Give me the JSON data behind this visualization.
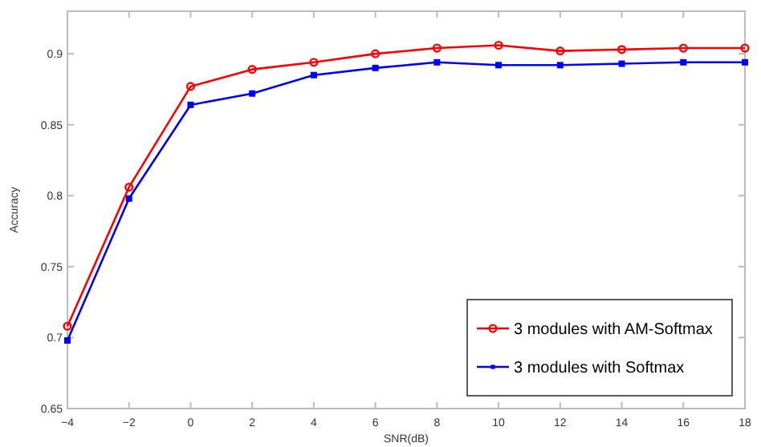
{
  "chart_data": {
    "type": "line",
    "xlabel": "SNR(dB)",
    "ylabel": "Accuracy",
    "x": [
      -4,
      -2,
      0,
      2,
      4,
      6,
      8,
      10,
      12,
      14,
      16,
      18
    ],
    "series": [
      {
        "name": "3 modules with AM-Softmax",
        "color": "#ff0000",
        "marker": "circle",
        "values": [
          0.708,
          0.806,
          0.877,
          0.889,
          0.894,
          0.9,
          0.904,
          0.906,
          0.902,
          0.903,
          0.904,
          0.904
        ]
      },
      {
        "name": "3 modules with Softmax",
        "color": "#0000ff",
        "marker": "square",
        "values": [
          0.698,
          0.798,
          0.864,
          0.872,
          0.885,
          0.89,
          0.894,
          0.892,
          0.892,
          0.893,
          0.894,
          0.894
        ]
      }
    ],
    "xlim": [
      -4,
      18
    ],
    "xticks": [
      -4,
      -2,
      0,
      2,
      4,
      6,
      8,
      10,
      12,
      14,
      16,
      18
    ],
    "ylim": [
      0.65,
      0.93
    ],
    "yticks": [
      0.65,
      0.7,
      0.75,
      0.8,
      0.85,
      0.9
    ],
    "legend": "bottom right",
    "grid": false,
    "line_style": "solid"
  }
}
